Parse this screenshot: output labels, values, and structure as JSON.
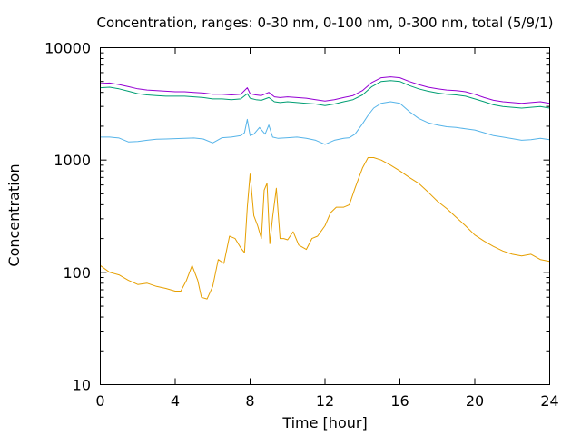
{
  "chart_data": {
    "type": "line",
    "title": "Concentration, ranges: 0-30 nm, 0-100 nm, 0-300 nm, total (5/9/1)",
    "xlabel": "Time [hour]",
    "ylabel": "Concentration",
    "xlim": [
      0,
      24
    ],
    "ylim": [
      10,
      10000
    ],
    "yscale": "log",
    "grid": false,
    "legend": "none",
    "x_ticks": [
      0,
      4,
      8,
      12,
      16,
      20,
      24
    ],
    "x_tick_labels": [
      "0",
      "4",
      "8",
      "12",
      "16",
      "20",
      "24"
    ],
    "y_ticks": [
      10,
      100,
      1000,
      10000
    ],
    "y_tick_labels": [
      "10",
      "100",
      "1000",
      "10000"
    ],
    "series": [
      {
        "color": "#e69f00",
        "x": [
          0,
          0.5,
          1,
          1.5,
          2,
          2.5,
          3,
          3.5,
          4,
          4.3,
          4.6,
          4.9,
          5.2,
          5.4,
          5.7,
          6,
          6.3,
          6.6,
          6.9,
          7.2,
          7.5,
          7.7,
          7.85,
          8,
          8.2,
          8.4,
          8.6,
          8.75,
          8.9,
          9.05,
          9.2,
          9.4,
          9.6,
          9.8,
          10,
          10.3,
          10.6,
          11,
          11.3,
          11.6,
          12,
          12.3,
          12.6,
          13,
          13.3,
          13.6,
          14,
          14.3,
          14.6,
          15,
          15.5,
          16,
          16.5,
          17,
          17.5,
          18,
          18.5,
          19,
          19.5,
          20,
          20.5,
          21,
          21.5,
          22,
          22.5,
          23,
          23.5,
          24
        ],
        "y": [
          115,
          100,
          95,
          85,
          78,
          80,
          75,
          72,
          68,
          68,
          85,
          115,
          85,
          60,
          58,
          75,
          130,
          120,
          210,
          200,
          165,
          150,
          380,
          750,
          320,
          260,
          200,
          540,
          620,
          180,
          310,
          560,
          200,
          200,
          195,
          230,
          175,
          160,
          200,
          210,
          260,
          340,
          380,
          380,
          400,
          560,
          850,
          1050,
          1050,
          1000,
          900,
          800,
          700,
          620,
          520,
          430,
          370,
          310,
          260,
          215,
          190,
          170,
          155,
          145,
          140,
          145,
          130,
          125
        ]
      },
      {
        "color": "#56b4e9",
        "x": [
          0,
          0.5,
          1,
          1.5,
          2,
          2.5,
          3,
          3.5,
          4,
          4.5,
          5,
          5.5,
          6,
          6.5,
          7,
          7.5,
          7.7,
          7.85,
          8,
          8.2,
          8.5,
          8.8,
          9,
          9.2,
          9.5,
          10,
          10.5,
          11,
          11.5,
          12,
          12.5,
          13,
          13.3,
          13.6,
          14,
          14.3,
          14.6,
          15,
          15.5,
          16,
          16.5,
          17,
          17.5,
          18,
          18.5,
          19,
          19.5,
          20,
          20.5,
          21,
          21.5,
          22,
          22.5,
          23,
          23.5,
          24
        ],
        "y": [
          1600,
          1600,
          1570,
          1450,
          1460,
          1500,
          1530,
          1540,
          1550,
          1560,
          1570,
          1540,
          1420,
          1580,
          1600,
          1650,
          1750,
          2300,
          1650,
          1700,
          1950,
          1700,
          2050,
          1600,
          1560,
          1580,
          1600,
          1560,
          1500,
          1380,
          1500,
          1560,
          1580,
          1700,
          2100,
          2500,
          2900,
          3200,
          3300,
          3200,
          2700,
          2350,
          2150,
          2050,
          1980,
          1950,
          1900,
          1850,
          1750,
          1650,
          1600,
          1550,
          1500,
          1520,
          1560,
          1520
        ]
      },
      {
        "color": "#009e73",
        "x": [
          0,
          0.5,
          1,
          1.5,
          2,
          2.5,
          3,
          3.5,
          4,
          4.5,
          5,
          5.5,
          6,
          6.5,
          7,
          7.5,
          7.85,
          8,
          8.3,
          8.6,
          9,
          9.3,
          9.6,
          10,
          10.5,
          11,
          11.5,
          12,
          12.5,
          13,
          13.5,
          14,
          14.5,
          15,
          15.5,
          16,
          16.5,
          17,
          17.5,
          18,
          18.5,
          19,
          19.5,
          20,
          20.5,
          21,
          21.5,
          22,
          22.5,
          23,
          23.5,
          24
        ],
        "y": [
          4400,
          4450,
          4300,
          4100,
          3900,
          3800,
          3750,
          3700,
          3700,
          3700,
          3650,
          3600,
          3500,
          3500,
          3450,
          3500,
          3900,
          3550,
          3450,
          3400,
          3600,
          3300,
          3250,
          3300,
          3250,
          3200,
          3150,
          3050,
          3150,
          3300,
          3450,
          3800,
          4500,
          5000,
          5100,
          5000,
          4600,
          4300,
          4100,
          3950,
          3850,
          3800,
          3700,
          3500,
          3300,
          3100,
          3000,
          2950,
          2900,
          2950,
          3000,
          2900
        ]
      },
      {
        "color": "#9400d3",
        "x": [
          0,
          0.5,
          1,
          1.5,
          2,
          2.5,
          3,
          3.5,
          4,
          4.5,
          5,
          5.5,
          6,
          6.5,
          7,
          7.5,
          7.85,
          8,
          8.3,
          8.6,
          9,
          9.3,
          9.6,
          10,
          10.5,
          11,
          11.5,
          12,
          12.5,
          13,
          13.5,
          14,
          14.5,
          15,
          15.5,
          16,
          16.5,
          17,
          17.5,
          18,
          18.5,
          19,
          19.5,
          20,
          20.5,
          21,
          21.5,
          22,
          22.5,
          23,
          23.5,
          24
        ],
        "y": [
          4800,
          4850,
          4700,
          4500,
          4300,
          4200,
          4150,
          4100,
          4050,
          4050,
          4000,
          3950,
          3850,
          3850,
          3800,
          3850,
          4400,
          3900,
          3800,
          3750,
          4000,
          3650,
          3600,
          3650,
          3600,
          3550,
          3450,
          3350,
          3450,
          3600,
          3750,
          4150,
          4900,
          5400,
          5500,
          5400,
          5000,
          4700,
          4450,
          4300,
          4200,
          4150,
          4050,
          3850,
          3600,
          3400,
          3300,
          3250,
          3200,
          3250,
          3300,
          3200
        ]
      }
    ]
  }
}
